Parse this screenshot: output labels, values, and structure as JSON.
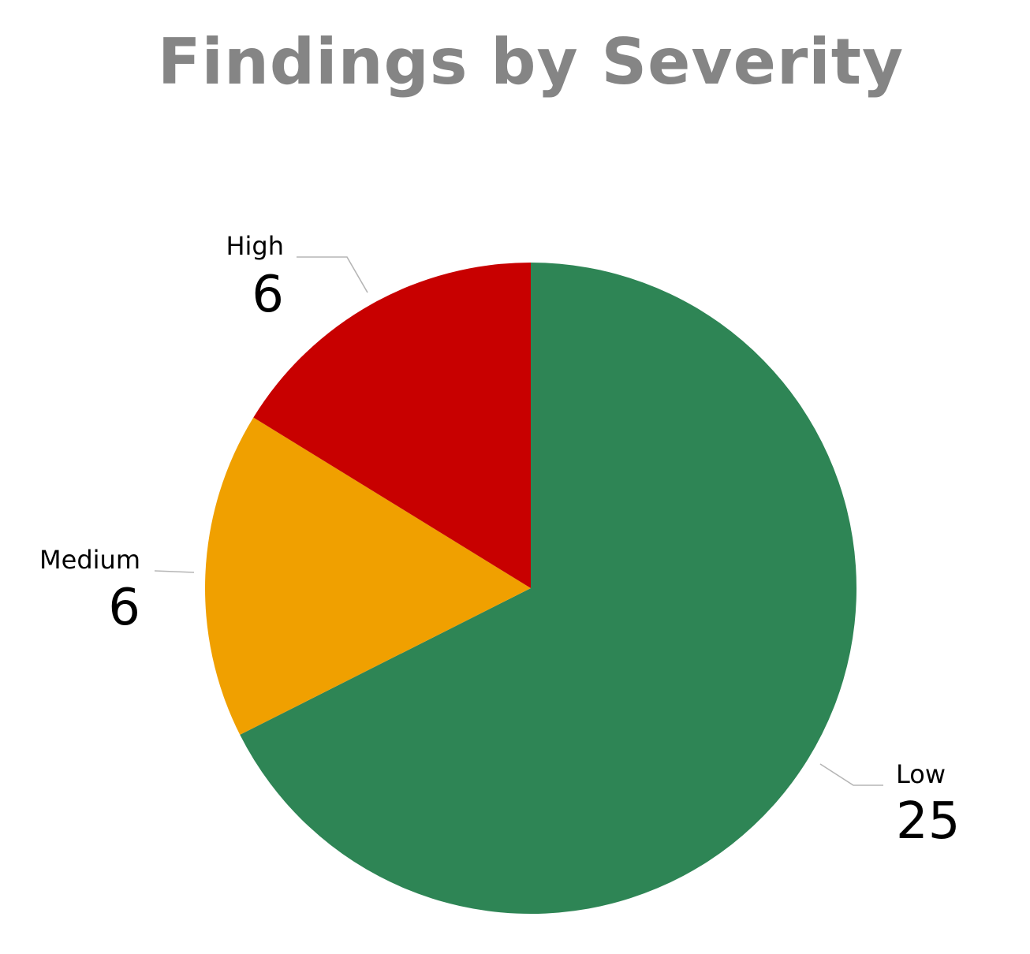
{
  "chart_data": {
    "type": "pie",
    "title": "Findings by Severity",
    "slices": [
      {
        "label": "Low",
        "value": 25,
        "color": "#2e8555"
      },
      {
        "label": "Medium",
        "value": 6,
        "color": "#f0a000"
      },
      {
        "label": "High",
        "value": 6,
        "color": "#c80000"
      }
    ],
    "start": "top",
    "direction": "clockwise",
    "legend": "none",
    "data_labels": "outside, category name and value"
  }
}
